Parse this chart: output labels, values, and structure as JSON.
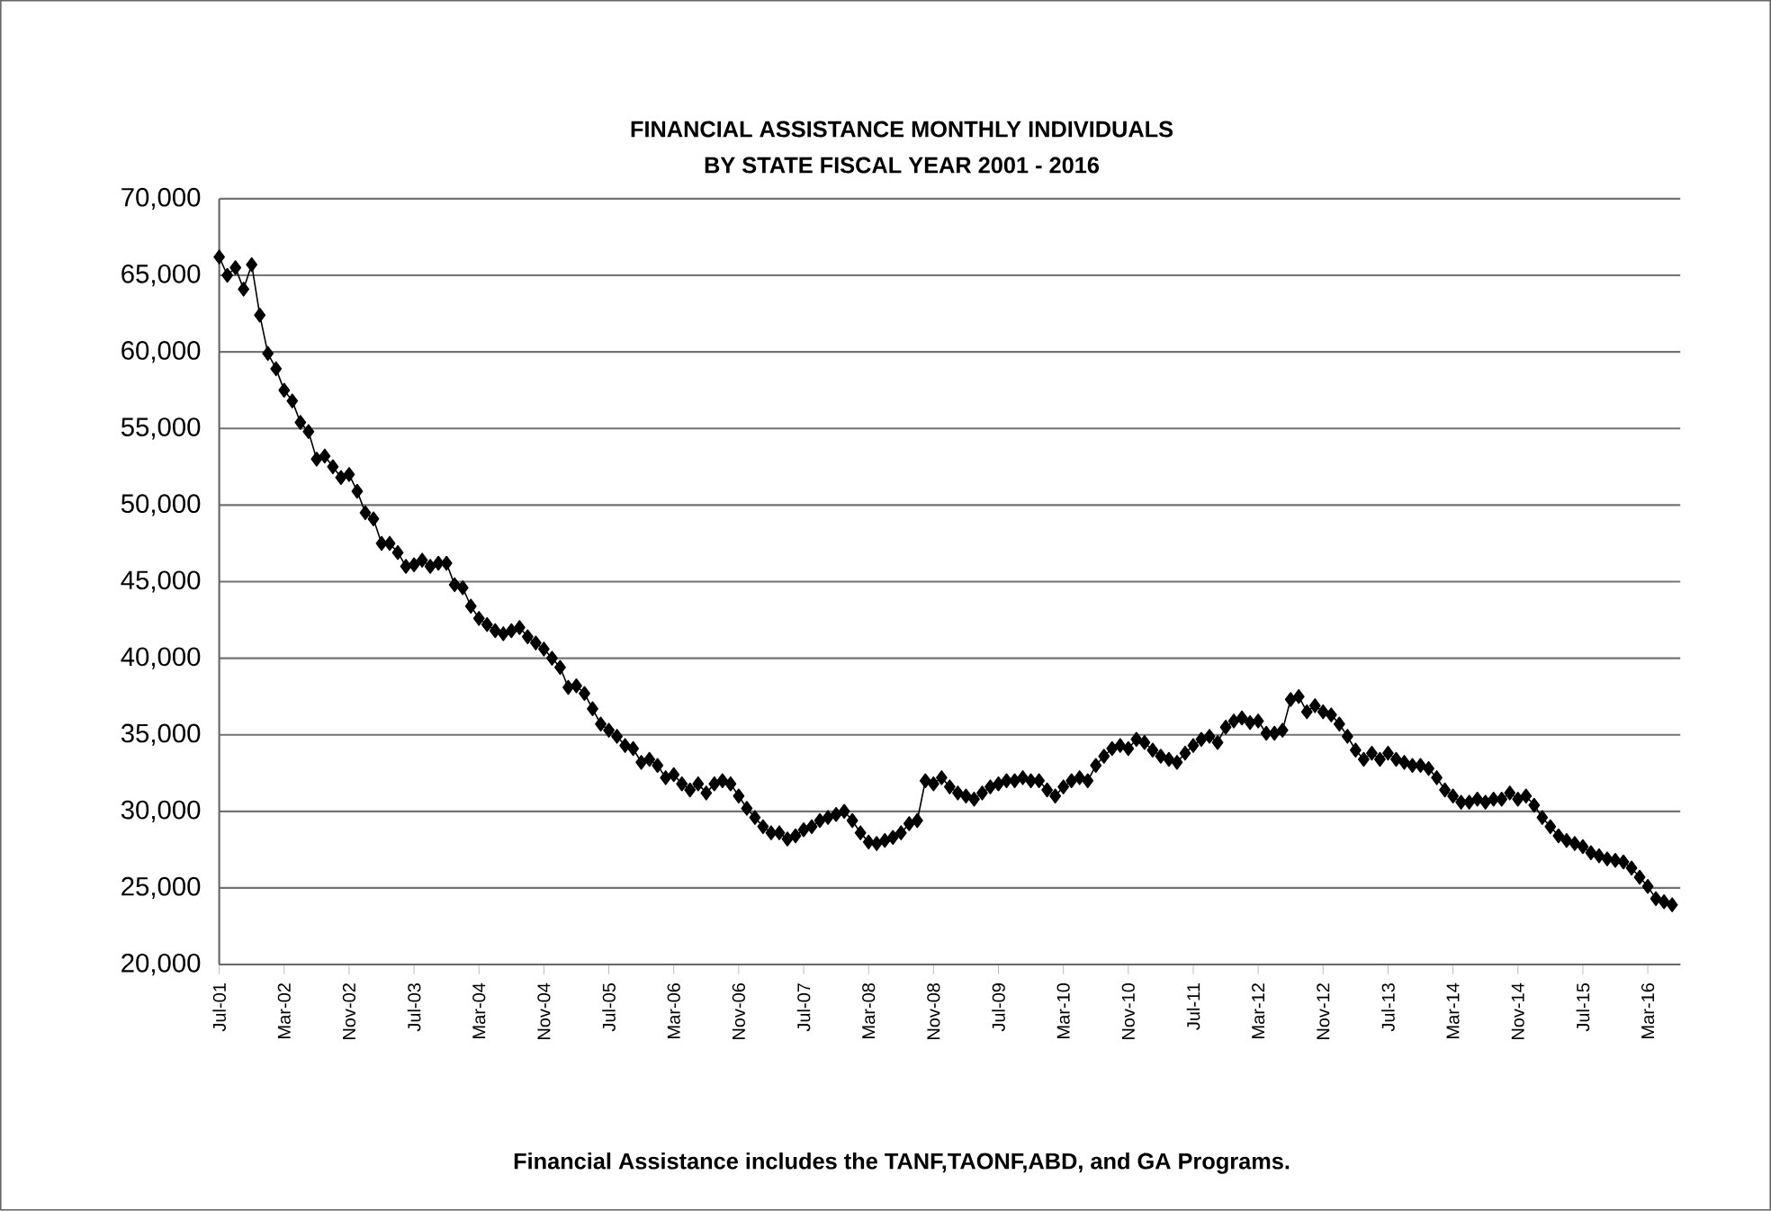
{
  "chart_data": {
    "type": "line",
    "title": "FINANCIAL ASSISTANCE MONTHLY INDIVIDUALS",
    "subtitle": "BY STATE FISCAL YEAR 2001 - 2016",
    "annotations": [
      "Financial Assistance includes the TANF,TAONF,ABD, and GA Programs."
    ],
    "categories": [
      "Jul-01",
      null,
      null,
      null,
      null,
      null,
      null,
      null,
      "Mar-02",
      null,
      null,
      null,
      null,
      null,
      null,
      null,
      "Nov-02",
      null,
      null,
      null,
      null,
      null,
      null,
      null,
      "Jul-03",
      null,
      null,
      null,
      null,
      null,
      null,
      null,
      "Mar-04",
      null,
      null,
      null,
      null,
      null,
      null,
      null,
      "Nov-04",
      null,
      null,
      null,
      null,
      null,
      null,
      null,
      "Jul-05",
      null,
      null,
      null,
      null,
      null,
      null,
      null,
      "Mar-06",
      null,
      null,
      null,
      null,
      null,
      null,
      null,
      "Nov-06",
      null,
      null,
      null,
      null,
      null,
      null,
      null,
      "Jul-07",
      null,
      null,
      null,
      null,
      null,
      null,
      null,
      "Mar-08",
      null,
      null,
      null,
      null,
      null,
      null,
      null,
      "Nov-08",
      null,
      null,
      null,
      null,
      null,
      null,
      null,
      "Jul-09",
      null,
      null,
      null,
      null,
      null,
      null,
      null,
      "Mar-10",
      null,
      null,
      null,
      null,
      null,
      null,
      null,
      "Nov-10",
      null,
      null,
      null,
      null,
      null,
      null,
      null,
      "Jul-11",
      null,
      null,
      null,
      null,
      null,
      null,
      null,
      "Mar-12",
      null,
      null,
      null,
      null,
      null,
      null,
      null,
      "Nov-12",
      null,
      null,
      null,
      null,
      null,
      null,
      null,
      "Jul-13",
      null,
      null,
      null,
      null,
      null,
      null,
      null,
      "Mar-14",
      null,
      null,
      null,
      null,
      null,
      null,
      null,
      "Nov-14",
      null,
      null,
      null,
      null,
      null,
      null,
      null,
      "Jul-15",
      null,
      null,
      null,
      null,
      null,
      null,
      null,
      "Mar-16",
      null,
      null,
      null
    ],
    "series": [
      {
        "color": "#000000",
        "values": [
          66200,
          65000,
          65500,
          64100,
          65700,
          62400,
          59900,
          58900,
          57500,
          56800,
          55400,
          54800,
          53000,
          53200,
          52500,
          51800,
          52000,
          50900,
          49500,
          49100,
          47500,
          47500,
          46900,
          46000,
          46100,
          46400,
          46000,
          46200,
          46200,
          44800,
          44600,
          43400,
          42600,
          42200,
          41800,
          41600,
          41800,
          42000,
          41400,
          41000,
          40600,
          40000,
          39400,
          38100,
          38200,
          37700,
          36700,
          35700,
          35300,
          34900,
          34300,
          34100,
          33200,
          33400,
          33000,
          32200,
          32400,
          31800,
          31400,
          31800,
          31200,
          31800,
          32000,
          31800,
          31000,
          30200,
          29600,
          29000,
          28600,
          28600,
          28200,
          28400,
          28800,
          29000,
          29400,
          29600,
          29800,
          30000,
          29400,
          28600,
          28000,
          27900,
          28100,
          28300,
          28600,
          29200,
          29400,
          32000,
          31800,
          32200,
          31600,
          31200,
          31000,
          30800,
          31200,
          31600,
          31800,
          32000,
          32000,
          32200,
          32000,
          32000,
          31400,
          31000,
          31600,
          32000,
          32200,
          32000,
          33000,
          33600,
          34100,
          34300,
          34100,
          34700,
          34500,
          34000,
          33600,
          33400,
          33200,
          33800,
          34300,
          34700,
          34900,
          34500,
          35500,
          35900,
          36100,
          35800,
          35900,
          35100,
          35100,
          35300,
          37300,
          37500,
          36500,
          36900,
          36500,
          36300,
          35700,
          34900,
          34000,
          33400,
          33800,
          33400,
          33800,
          33400,
          33200,
          33000,
          33000,
          32800,
          32200,
          31400,
          31000,
          30600,
          30600,
          30800,
          30600,
          30800,
          30800,
          31200,
          30800,
          31000,
          30400,
          29600,
          29000,
          28400,
          28100,
          27900,
          27700,
          27300,
          27100,
          26900,
          26800,
          26700,
          26300,
          25700,
          25100,
          24300,
          24100,
          23900
        ]
      }
    ],
    "ylim": [
      20000,
      70000
    ],
    "yticks": [
      {
        "value": 20000,
        "label": "20,000"
      },
      {
        "value": 25000,
        "label": "25,000"
      },
      {
        "value": 30000,
        "label": "30,000"
      },
      {
        "value": 35000,
        "label": "35,000"
      },
      {
        "value": 40000,
        "label": "40,000"
      },
      {
        "value": 45000,
        "label": "45,000"
      },
      {
        "value": 50000,
        "label": "50,000"
      },
      {
        "value": 55000,
        "label": "55,000"
      },
      {
        "value": 60000,
        "label": "60,000"
      },
      {
        "value": 65000,
        "label": "65,000"
      },
      {
        "value": 70000,
        "label": "70,000"
      }
    ],
    "grid": "y",
    "marker": "diamond",
    "line_style": "solid"
  }
}
